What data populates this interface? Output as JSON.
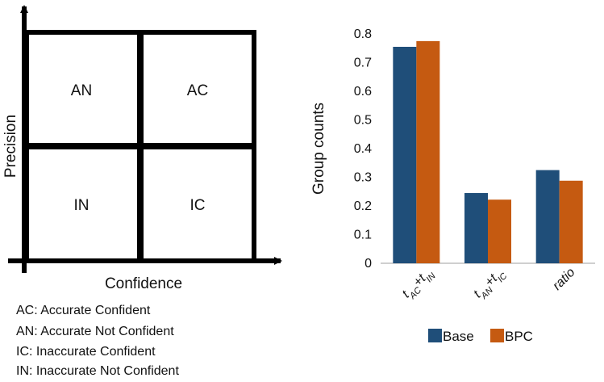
{
  "quadrant_diagram": {
    "x_axis_label": "Confidence",
    "y_axis_label": "Precision",
    "quadrants": {
      "top_left": "AN",
      "top_right": "AC",
      "bottom_left": "IN",
      "bottom_right": "IC"
    },
    "legend": [
      "AC: Accurate Confident",
      "AN: Accurate Not Confident",
      "IC: Inaccurate Confident",
      "IN: Inaccurate Not Confident"
    ]
  },
  "chart_data": {
    "type": "bar",
    "ylabel": "Group counts",
    "xlabel": "",
    "ylim": [
      0,
      0.8
    ],
    "yticks": [
      "0",
      "0.1",
      "0.2",
      "0.3",
      "0.4",
      "0.5",
      "0.6",
      "0.7",
      "0.8"
    ],
    "categories": [
      {
        "main1": "t",
        "sub1": "AC",
        "plus": "+",
        "main2": "t",
        "sub2": "IN"
      },
      {
        "main1": "t",
        "sub1": "AN",
        "plus": "+",
        "main2": "t",
        "sub2": "IC"
      },
      {
        "main1": "ratio"
      }
    ],
    "series": [
      {
        "name": "Base",
        "color": "#1f4e79",
        "values": [
          0.755,
          0.245,
          0.325
        ]
      },
      {
        "name": "BPC",
        "color": "#c55a11",
        "values": [
          0.775,
          0.222,
          0.288
        ]
      }
    ],
    "grid": false,
    "legend_position": "bottom"
  }
}
